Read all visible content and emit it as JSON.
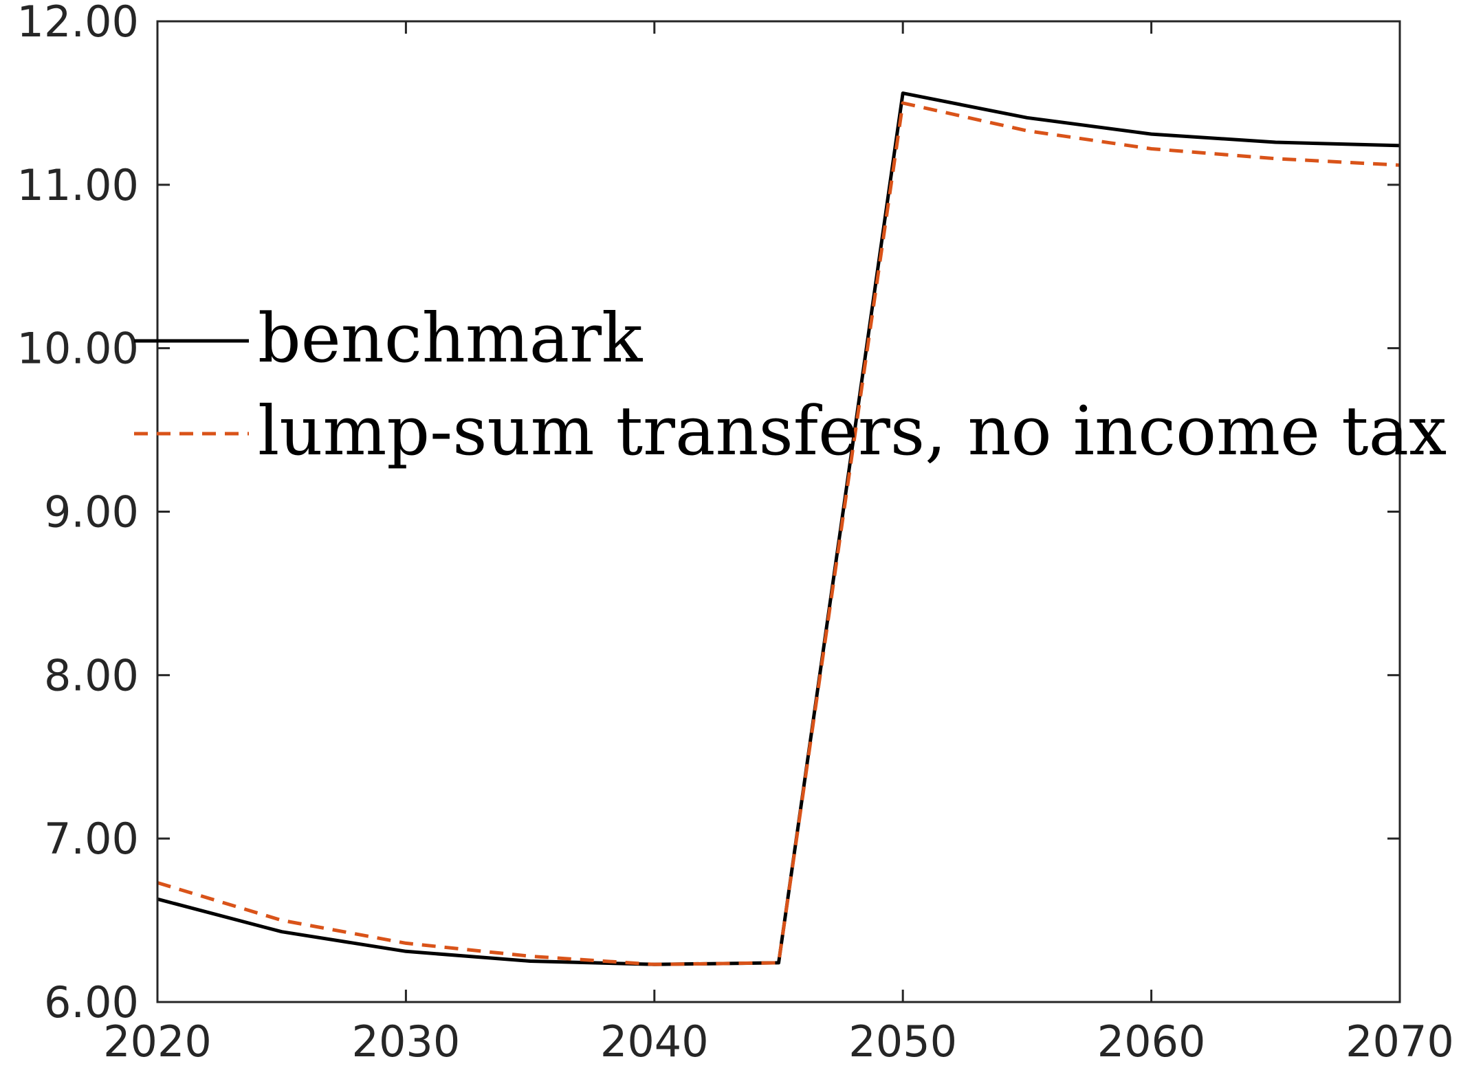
{
  "chart_data": {
    "type": "line",
    "title": "",
    "xlabel": "",
    "ylabel": "",
    "xlim": [
      2020,
      2070
    ],
    "ylim": [
      6,
      12
    ],
    "x_ticks": [
      2020,
      2030,
      2040,
      2050,
      2060,
      2070
    ],
    "x_tick_labels": [
      "2020",
      "2030",
      "2040",
      "2050",
      "2060",
      "2070"
    ],
    "y_ticks": [
      6,
      7,
      8,
      9,
      10,
      11,
      12
    ],
    "y_tick_labels": [
      "6.00",
      "7.00",
      "8.00",
      "9.00",
      "10.00",
      "11.00",
      "12.00"
    ],
    "grid": false,
    "legend_position": "center-left",
    "x": [
      2020,
      2025,
      2030,
      2035,
      2040,
      2045,
      2050,
      2055,
      2060,
      2065,
      2070
    ],
    "series": [
      {
        "name": "benchmark",
        "style": "solid",
        "color": "#000000",
        "values": [
          6.63,
          6.43,
          6.31,
          6.25,
          6.23,
          6.24,
          11.56,
          11.41,
          11.31,
          11.26,
          11.24
        ]
      },
      {
        "name": "lump-sum transfers, no income tax",
        "style": "dashed",
        "color": "#D95319",
        "values": [
          6.73,
          6.5,
          6.36,
          6.28,
          6.23,
          6.24,
          11.5,
          11.33,
          11.22,
          11.16,
          11.12
        ]
      }
    ]
  }
}
